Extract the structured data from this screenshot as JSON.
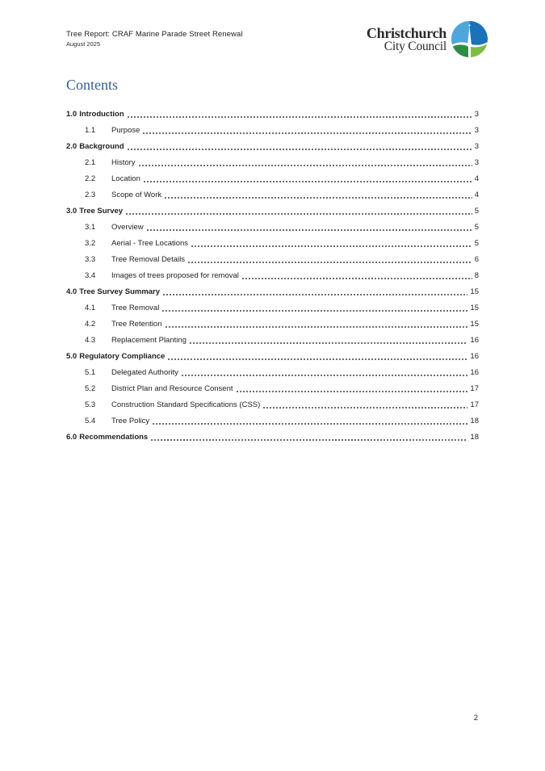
{
  "header": {
    "title": "Tree Report: CRAF Marine Parade Street Renewal",
    "date": "August 2025"
  },
  "logo": {
    "line1": "Christchurch",
    "line2": "City Council",
    "emblem": "christchurch-city-council-emblem",
    "colors": {
      "blue_light": "#4EA6DB",
      "blue_dark": "#1B72B8",
      "green_dark": "#2F8C46",
      "green_light": "#7DBD42",
      "spire": "#FFFFFF"
    }
  },
  "contents": {
    "heading": "Contents",
    "heading_color": "#365F91"
  },
  "toc": [
    {
      "level": 1,
      "number": "1.0",
      "title": "Introduction",
      "page": "3"
    },
    {
      "level": 2,
      "number": "1.1",
      "title": "Purpose",
      "page": "3"
    },
    {
      "level": 1,
      "number": "2.0",
      "title": "Background",
      "page": "3"
    },
    {
      "level": 2,
      "number": "2.1",
      "title": "History",
      "page": "3"
    },
    {
      "level": 2,
      "number": "2.2",
      "title": "Location",
      "page": "4"
    },
    {
      "level": 2,
      "number": "2.3",
      "title": "Scope of Work",
      "page": "4"
    },
    {
      "level": 1,
      "number": "3.0",
      "title": "Tree Survey",
      "page": "5"
    },
    {
      "level": 2,
      "number": "3.1",
      "title": "Overview",
      "page": "5"
    },
    {
      "level": 2,
      "number": "3.2",
      "title": "Aerial - Tree Locations",
      "page": "5"
    },
    {
      "level": 2,
      "number": "3.3",
      "title": "Tree Removal Details",
      "page": "6"
    },
    {
      "level": 2,
      "number": "3.4",
      "title": "Images of trees proposed for removal",
      "page": "8"
    },
    {
      "level": 1,
      "number": "4.0",
      "title": "Tree Survey Summary",
      "page": "15"
    },
    {
      "level": 2,
      "number": "4.1",
      "title": "Tree Removal",
      "page": "15"
    },
    {
      "level": 2,
      "number": "4.2",
      "title": "Tree Retention",
      "page": "15"
    },
    {
      "level": 2,
      "number": "4.3",
      "title": "Replacement Planting",
      "page": "16"
    },
    {
      "level": 1,
      "number": "5.0",
      "title": "Regulatory Compliance",
      "page": "16"
    },
    {
      "level": 2,
      "number": "5.1",
      "title": "Delegated Authority",
      "page": "16"
    },
    {
      "level": 2,
      "number": "5.2",
      "title": "District Plan and Resource Consent",
      "page": "17"
    },
    {
      "level": 2,
      "number": "5.3",
      "title": "Construction Standard Specifications (CSS)",
      "page": "17"
    },
    {
      "level": 2,
      "number": "5.4",
      "title": "Tree Policy",
      "page": "18"
    },
    {
      "level": 1,
      "number": "6.0",
      "title": "Recommendations",
      "page": "18"
    }
  ],
  "footer": {
    "page_number": "2"
  }
}
